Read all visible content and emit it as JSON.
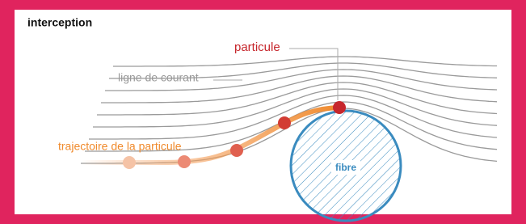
{
  "title": "interception",
  "labels": {
    "particle": "particule",
    "streamline": "ligne de courant",
    "trajectory": "trajectoire de la particule",
    "fiber": "fibre"
  }
}
